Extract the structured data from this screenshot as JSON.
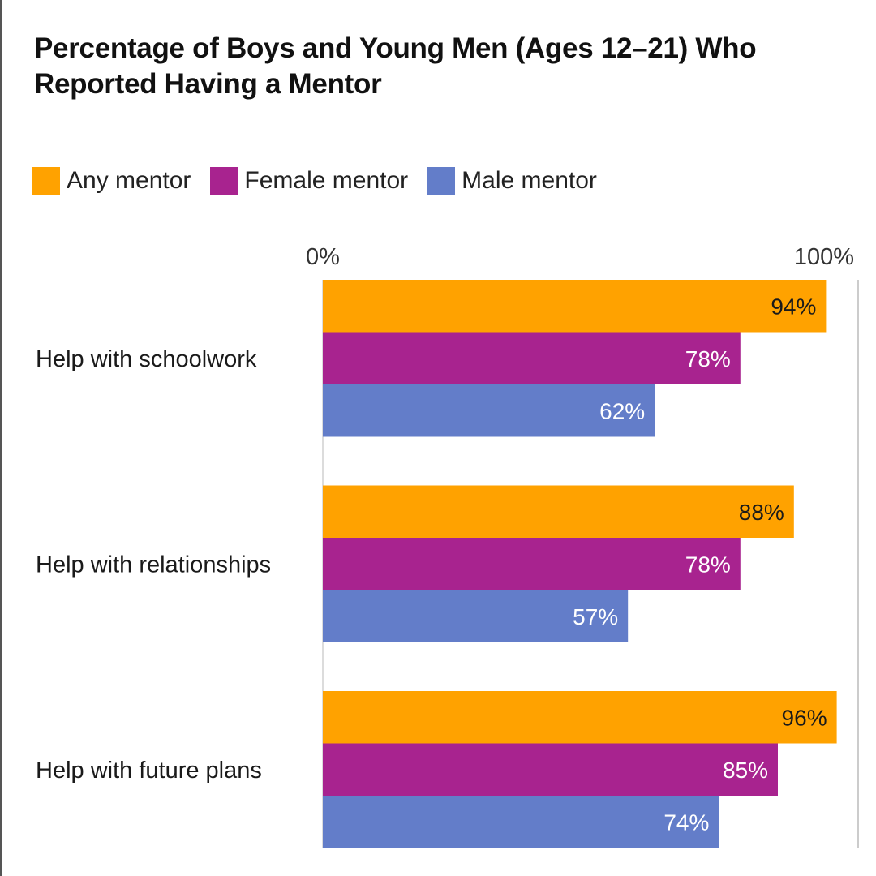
{
  "chart_data": {
    "type": "bar",
    "orientation": "horizontal",
    "title": "Percentage of Boys and Young Men (Ages 12–21) Who Reported Having a Mentor",
    "categories": [
      "Help with schoolwork",
      "Help with relationships",
      "Help with future plans"
    ],
    "series": [
      {
        "name": "Any mentor",
        "color": "#FFA200",
        "label_color": "#1a1a1a",
        "values": [
          94,
          88,
          96
        ],
        "labels": [
          "94%",
          "88%",
          "96%"
        ]
      },
      {
        "name": "Female mentor",
        "color": "#A8238F",
        "label_color": "#ffffff",
        "values": [
          78,
          78,
          85
        ],
        "labels": [
          "78%",
          "78%",
          "85%"
        ]
      },
      {
        "name": "Male mentor",
        "color": "#637DC9",
        "label_color": "#ffffff",
        "values": [
          62,
          57,
          74
        ],
        "labels": [
          "62%",
          "57%",
          "74%"
        ]
      }
    ],
    "xlim": [
      0,
      100
    ],
    "x_ticks": [
      "0%",
      "100%"
    ],
    "legend_position": "top-left",
    "grid": false
  }
}
